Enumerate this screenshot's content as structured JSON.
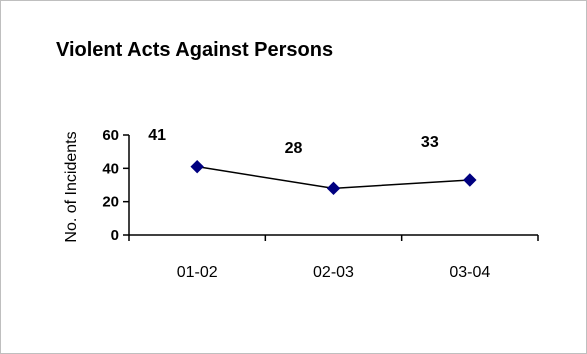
{
  "chart_data": {
    "type": "line",
    "title": "Violent Acts Against Persons",
    "xlabel": "",
    "ylabel": "No. of Incidents",
    "categories": [
      "01-02",
      "02-03",
      "03-04"
    ],
    "series": [
      {
        "values": [
          41,
          28,
          33
        ],
        "labels": [
          "41",
          "28",
          "33"
        ]
      }
    ],
    "ylim": [
      0,
      60
    ],
    "yticks": [
      0,
      20,
      40,
      60
    ],
    "grid": false,
    "legend": "none",
    "marker": "diamond",
    "colors": {
      "line": "#000000",
      "marker": "#000080"
    }
  }
}
